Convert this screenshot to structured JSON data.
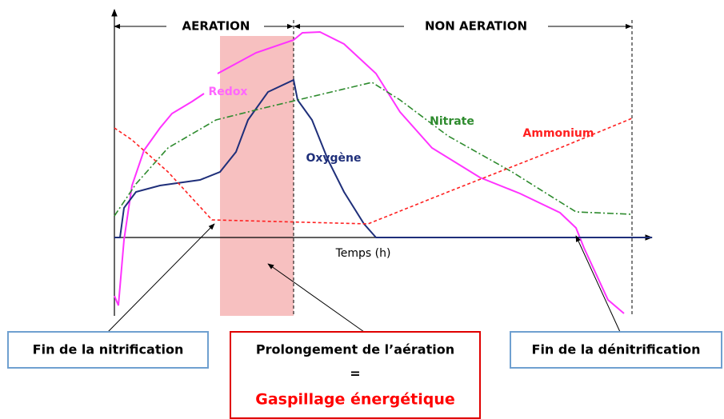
{
  "phases": {
    "aeration": "AERATION",
    "non_aeration": "NON AERATION"
  },
  "curves": {
    "redox": "Redox",
    "oxygen": "Oxygène",
    "nitrate": "Nitrate",
    "ammonium": "Ammonium"
  },
  "axis": {
    "x_label": "Temps (h)"
  },
  "annotations": {
    "left": "Fin de la nitrification",
    "center": {
      "line1": "Prolongement de l’aération",
      "line2": "=",
      "line3": "Gaspillage énergétique"
    },
    "right": "Fin de la dénitrification"
  }
}
